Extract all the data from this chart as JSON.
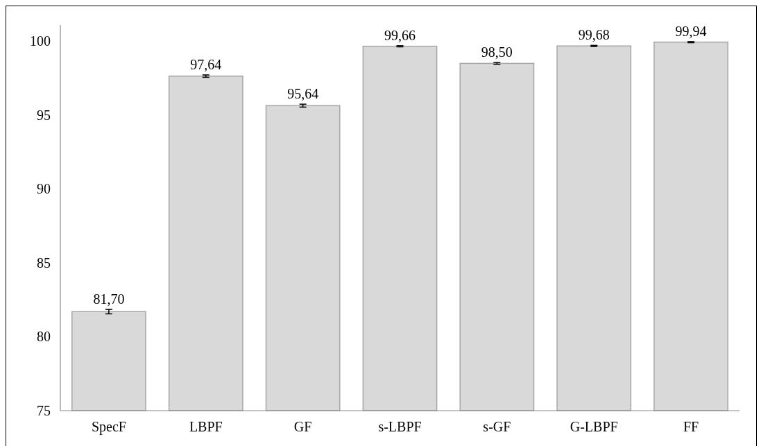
{
  "chart_data": {
    "type": "bar",
    "categories": [
      "SpecF",
      "LBPF",
      "GF",
      "s-LBPF",
      "s-GF",
      "G-LBPF",
      "FF"
    ],
    "values": [
      81.7,
      97.64,
      95.64,
      99.66,
      98.5,
      99.68,
      99.94
    ],
    "errors": [
      0.15,
      0.08,
      0.1,
      0.04,
      0.06,
      0.04,
      0.04
    ],
    "value_labels": [
      "81,70",
      "97,64",
      "95,64",
      "99,66",
      "98,50",
      "99,68",
      "99,94"
    ],
    "color": "#d9d9d9",
    "ylim": [
      75,
      101.1
    ],
    "yticks": [
      75,
      80,
      85,
      90,
      95,
      100
    ],
    "grid": false
  }
}
